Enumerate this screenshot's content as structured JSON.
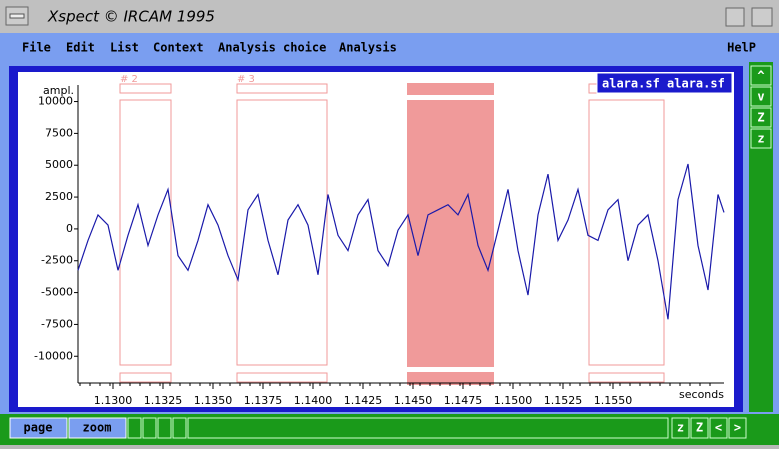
{
  "window": {
    "title": "Xspect © IRCAM 1995",
    "menu": [
      "File",
      "Edit",
      "List",
      "Context",
      "Analysis choice",
      "Analysis"
    ],
    "help": "HelP",
    "popup": "alara.sf alara.sf",
    "side_buttons": [
      "^",
      "v",
      "Z",
      "z"
    ],
    "bottom_tabs": [
      "page",
      "zoom"
    ],
    "bottom_buttons": [
      "z",
      "Z",
      "<",
      ">"
    ]
  },
  "chart_data": {
    "type": "line",
    "y_label": "ampl.",
    "x_label": "seconds",
    "color": "#1a1aaa",
    "x": [
      1.12825,
      1.12875,
      1.12925,
      1.12975,
      1.13025,
      1.13075,
      1.13125,
      1.13175,
      1.13225,
      1.13275,
      1.13325,
      1.13375,
      1.13425,
      1.13475,
      1.13525,
      1.13575,
      1.13625,
      1.13675,
      1.13725,
      1.13775,
      1.13825,
      1.13875,
      1.13925,
      1.13975,
      1.14025,
      1.14075,
      1.14125,
      1.14175,
      1.14225,
      1.14275,
      1.14325,
      1.14375,
      1.14425,
      1.14475,
      1.14525,
      1.14575,
      1.14625,
      1.14675,
      1.14725,
      1.14775,
      1.14825,
      1.14875,
      1.14925,
      1.14975,
      1.15025,
      1.15075,
      1.15125,
      1.15175,
      1.15225,
      1.15275,
      1.15325,
      1.15375,
      1.15425,
      1.15475,
      1.15525,
      1.15575,
      1.15625,
      1.15675,
      1.15725,
      1.15775,
      1.15825,
      1.15875,
      1.15925,
      1.15975,
      1.16025,
      1.16055
    ],
    "values": [
      -3250,
      -900,
      1100,
      300,
      -3250,
      -500,
      1900,
      -1300,
      1100,
      3100,
      -2100,
      -3250,
      -900,
      1900,
      300,
      -2100,
      -4000,
      1500,
      2700,
      -900,
      -3600,
      700,
      1900,
      300,
      -3600,
      2700,
      -500,
      -1700,
      1100,
      2300,
      -1700,
      -2900,
      -100,
      1100,
      -2100,
      1100,
      1500,
      1900,
      1100,
      2700,
      -1300,
      -3250,
      -100,
      3100,
      -1700,
      -5200,
      1100,
      4300,
      -900,
      700,
      3100,
      -500,
      -900,
      1500,
      2300,
      -2500,
      300,
      1100,
      -2500,
      -7100,
      2300,
      5100,
      -1300,
      -4800,
      2700,
      1300
    ],
    "xlim": [
      1.12825,
      1.16055
    ],
    "ylim": [
      -12100,
      11300
    ],
    "xticks": [
      {
        "value": 1.13,
        "label": "1.1300"
      },
      {
        "value": 1.1325,
        "label": "1.1325"
      },
      {
        "value": 1.135,
        "label": "1.1350"
      },
      {
        "value": 1.1375,
        "label": "1.1375"
      },
      {
        "value": 1.14,
        "label": "1.1400"
      },
      {
        "value": 1.1425,
        "label": "1.1425"
      },
      {
        "value": 1.145,
        "label": "1.1450"
      },
      {
        "value": 1.1475,
        "label": "1.1475"
      },
      {
        "value": 1.15,
        "label": "1.1500"
      },
      {
        "value": 1.1525,
        "label": "1.1525"
      },
      {
        "value": 1.155,
        "label": "1.1550"
      }
    ],
    "yticks": [
      10000,
      7500,
      5000,
      2500,
      0,
      -2500,
      -5000,
      -7500,
      -10000
    ],
    "regions": [
      {
        "label": "# 2",
        "start": 1.13035,
        "end": 1.1329
      },
      {
        "label": "# 3",
        "start": 1.1362,
        "end": 1.1407
      },
      {
        "start": 1.1447,
        "end": 1.14905,
        "selected": true
      },
      {
        "start": 1.1538,
        "end": 1.15755
      }
    ],
    "region_color": "#f09a9a"
  }
}
